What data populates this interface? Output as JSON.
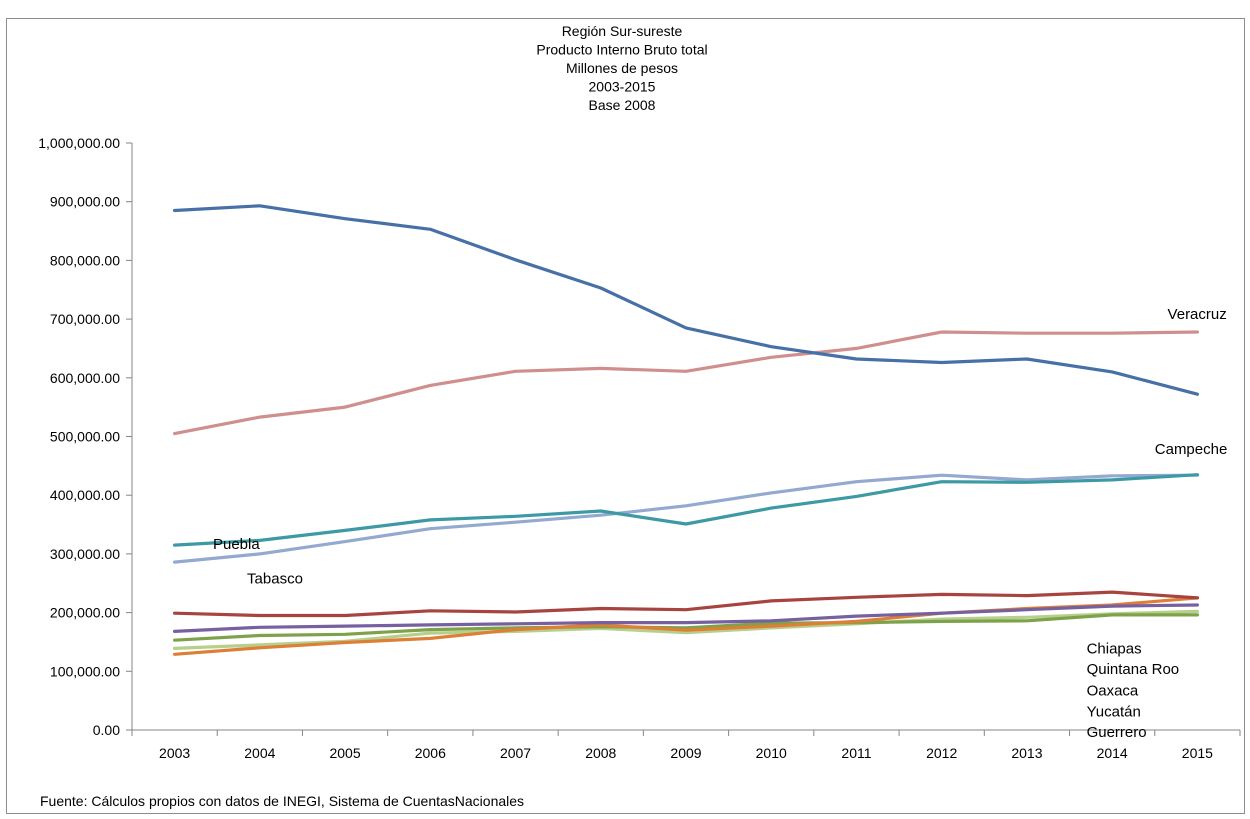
{
  "chart_data": {
    "type": "line",
    "title_lines": [
      "Región  Sur-sureste",
      "Producto Interno Bruto total",
      "Millones de pesos",
      "2003-2015",
      "Base 2008"
    ],
    "xlabel": "",
    "ylabel": "",
    "x": [
      "2003",
      "2004",
      "2005",
      "2006",
      "2007",
      "2008",
      "2009",
      "2010",
      "2011",
      "2012",
      "2013",
      "2014",
      "2015"
    ],
    "ylim": [
      0,
      1000000
    ],
    "ytick_values": [
      0,
      100000,
      200000,
      300000,
      400000,
      500000,
      600000,
      700000,
      800000,
      900000,
      1000000
    ],
    "ytick_labels": [
      "0.00",
      "100,000.00",
      "200,000.00",
      "300,000.00",
      "400,000.00",
      "500,000.00",
      "600,000.00",
      "700,000.00",
      "800,000.00",
      "900,000.00",
      "1,000,000.00"
    ],
    "grid": false,
    "series": [
      {
        "color": "#4670a6",
        "values": [
          885000,
          893000,
          871000,
          853000,
          801000,
          753000,
          685000,
          653000,
          632000,
          626000,
          632000,
          610000,
          572000
        ]
      },
      {
        "color": "#cf8f8e",
        "values": [
          505000,
          533000,
          550000,
          587000,
          611000,
          616000,
          611000,
          635000,
          650000,
          678000,
          676000,
          676000,
          678000
        ]
      },
      {
        "color": "#3d9aa5",
        "values": [
          315000,
          323000,
          340000,
          358000,
          364000,
          373000,
          351000,
          378000,
          398000,
          423000,
          422000,
          426000,
          435000
        ]
      },
      {
        "color": "#94a9cf",
        "values": [
          286000,
          300000,
          321000,
          343000,
          354000,
          366000,
          382000,
          404000,
          423000,
          434000,
          426000,
          433000,
          434000
        ]
      },
      {
        "color": "#a84440",
        "values": [
          199000,
          195000,
          195000,
          203000,
          201000,
          207000,
          205000,
          220000,
          226000,
          231000,
          229000,
          235000,
          225000
        ]
      },
      {
        "color": "#7660a0",
        "values": [
          168000,
          175000,
          177000,
          179000,
          181000,
          183000,
          183000,
          186000,
          194000,
          199000,
          205000,
          211000,
          213000
        ]
      },
      {
        "color": "#dd7f36",
        "values": [
          129000,
          140000,
          149000,
          156000,
          171000,
          179000,
          170000,
          177000,
          185000,
          199000,
          207000,
          213000,
          225000
        ]
      },
      {
        "color": "#7ea24a",
        "values": [
          153000,
          161000,
          163000,
          171000,
          174000,
          176000,
          174000,
          182000,
          183000,
          185000,
          186000,
          196000,
          196000
        ]
      },
      {
        "color": "#b7cf8d",
        "values": [
          139000,
          145000,
          151000,
          165000,
          168000,
          173000,
          166000,
          174000,
          181000,
          189000,
          192000,
          198000,
          202000
        ]
      }
    ],
    "annotations": [
      {
        "text": "Veracruz",
        "x": 2014.65,
        "y": 700000
      },
      {
        "text": "Campeche",
        "x": 2014.5,
        "y": 470000
      },
      {
        "text": "Puebla",
        "x": 2003.45,
        "y": 308000
      },
      {
        "text": "Tabasco",
        "x": 2003.85,
        "y": 250000
      },
      {
        "text": "Chiapas",
        "x": 2013.7,
        "y": 130000
      },
      {
        "text": "Quintana Roo",
        "x": 2013.7,
        "y": 95000
      },
      {
        "text": "Oaxaca",
        "x": 2013.7,
        "y": 59000
      },
      {
        "text": "Yucatán",
        "x": 2013.7,
        "y": 23000
      },
      {
        "text": "Guerrero",
        "x": 2013.7,
        "y": -12000
      }
    ]
  },
  "source_note": "Fuente: Cálculos propios con datos de INEGI, Sistema de CuentasNacionales"
}
